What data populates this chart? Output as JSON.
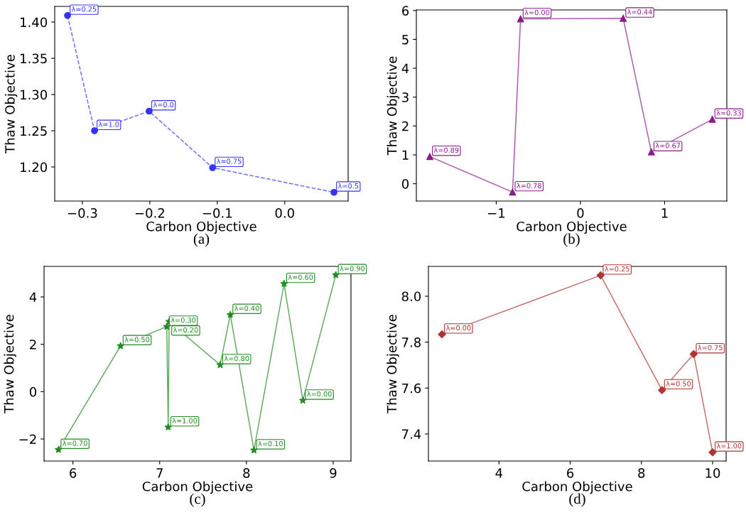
{
  "chart_data": [
    {
      "type": "line",
      "xlabel": "Carbon Objective",
      "ylabel": "Thaw Objective",
      "marker": "circle",
      "line_style": "dashed",
      "grid": false,
      "x": [
        -0.322,
        -0.282,
        -0.201,
        -0.107,
        0.073
      ],
      "series": [
        {
          "color": "#3333ff",
          "values": [
            1.409,
            1.25,
            1.277,
            1.199,
            1.165
          ]
        }
      ],
      "xlim": [
        -0.341,
        0.094
      ],
      "xticks": [
        {
          "value": -0.3,
          "label": "−0.3"
        },
        {
          "value": -0.2,
          "label": "−0.2"
        },
        {
          "value": -0.1,
          "label": "−0.1"
        },
        {
          "value": 0.0,
          "label": "0.0"
        }
      ],
      "ylim": [
        1.153,
        1.4216
      ],
      "yticks": [
        {
          "value": 1.2,
          "label": "1.20"
        },
        {
          "value": 1.25,
          "label": "1.25"
        },
        {
          "value": 1.3,
          "label": "1.30"
        },
        {
          "value": 1.35,
          "label": "1.35"
        },
        {
          "value": 1.4,
          "label": "1.40"
        }
      ],
      "annotations": [
        {
          "text": "λ=0.25",
          "x": -0.322,
          "y": 1.409
        },
        {
          "text": "λ=1.0",
          "x": -0.282,
          "y": 1.25
        },
        {
          "text": "λ=0.0",
          "x": -0.201,
          "y": 1.277
        },
        {
          "text": "λ=0.75",
          "x": -0.107,
          "y": 1.199
        },
        {
          "text": "λ=0.5",
          "x": 0.073,
          "y": 1.165
        },
        "(a)"
      ]
    },
    {
      "type": "line",
      "xlabel": "Carbon Objective",
      "ylabel": "Thaw Objective",
      "marker": "triangle",
      "line_style": "solid",
      "grid": false,
      "x": [
        -1.789,
        -0.806,
        -0.711,
        0.508,
        0.843,
        1.567
      ],
      "series": [
        {
          "color": "#8b1a8b",
          "values": [
            0.94,
            -0.29,
            5.71,
            5.73,
            1.1,
            2.23
          ]
        }
      ],
      "xlim": [
        -1.949,
        1.739
      ],
      "xticks": [
        {
          "value": -1,
          "label": "−1"
        },
        0,
        1
      ],
      "ylim": [
        -0.6,
        6.02
      ],
      "yticks": [
        0,
        1,
        2,
        3,
        4,
        5,
        6
      ],
      "annotations": [
        {
          "text": "λ=0.89",
          "x": -1.789,
          "y": 0.94
        },
        {
          "text": "λ=0.78",
          "x": -0.806,
          "y": -0.29
        },
        {
          "text": "λ=0.00",
          "x": -0.711,
          "y": 5.71
        },
        {
          "text": "λ=0.44",
          "x": 0.508,
          "y": 5.73
        },
        {
          "text": "λ=0.67",
          "x": 0.843,
          "y": 1.1
        },
        {
          "text": "λ=0.33",
          "x": 1.567,
          "y": 2.23
        },
        "(b)"
      ]
    },
    {
      "type": "line",
      "xlabel": "Carbon Objective",
      "ylabel": "Thaw Objective",
      "marker": "star",
      "line_style": "solid",
      "grid": false,
      "x": [
        5.833,
        6.549,
        7.082,
        7.098,
        7.109,
        7.697,
        7.814,
        8.087,
        8.434,
        8.65,
        9.03
      ],
      "series": [
        {
          "color": "#228b22",
          "values": [
            -2.45,
            1.93,
            2.75,
            -1.5,
            2.96,
            1.13,
            3.25,
            -2.47,
            4.56,
            -0.37,
            4.93
          ]
        }
      ],
      "xlim": [
        5.667,
        9.205
      ],
      "xticks": [
        6,
        7,
        8,
        9
      ],
      "ylim": [
        -2.93,
        5.29
      ],
      "yticks": [
        {
          "value": -2,
          "label": "−2"
        },
        0,
        2,
        4
      ],
      "annotations": [
        {
          "text": "λ=0.70",
          "x": 5.833,
          "y": -2.45
        },
        {
          "text": "λ=0.50",
          "x": 6.549,
          "y": 1.93
        },
        {
          "text": "λ=0.30",
          "x": 7.082,
          "y": 2.75
        },
        {
          "text": "λ=1.00",
          "x": 7.098,
          "y": -1.5
        },
        {
          "text": "λ=0.20",
          "x": 7.109,
          "y": 2.96
        },
        {
          "text": "λ=0.80",
          "x": 7.697,
          "y": 1.13
        },
        {
          "text": "λ=0.40",
          "x": 7.814,
          "y": 3.25
        },
        {
          "text": "λ=0.10",
          "x": 8.087,
          "y": -2.47
        },
        {
          "text": "λ=0.60",
          "x": 8.434,
          "y": 4.56
        },
        {
          "text": "λ=0.00",
          "x": 8.65,
          "y": -0.37
        },
        {
          "text": "λ=0.90",
          "x": 9.03,
          "y": 4.93
        },
        "(c)"
      ]
    },
    {
      "type": "line",
      "xlabel": "Carbon Objective",
      "ylabel": "Thaw Objective",
      "marker": "diamond",
      "line_style": "solid",
      "grid": false,
      "x": [
        2.397,
        6.854,
        8.578,
        9.469,
        10.0
      ],
      "series": [
        {
          "color": "#b03535",
          "values": [
            7.834,
            8.091,
            7.591,
            7.748,
            7.32
          ]
        }
      ],
      "xlim": [
        2.017,
        10.38
      ],
      "xticks": [
        4,
        6,
        8,
        10
      ],
      "ylim": [
        7.282,
        8.13
      ],
      "yticks": [
        {
          "value": 7.4,
          "label": "7.4"
        },
        {
          "value": 7.6,
          "label": "7.6"
        },
        {
          "value": 7.8,
          "label": "7.8"
        },
        {
          "value": 8.0,
          "label": "8.0"
        }
      ],
      "annotations": [
        {
          "text": "λ=0.00",
          "x": 2.397,
          "y": 7.834
        },
        {
          "text": "λ=0.25",
          "x": 6.854,
          "y": 8.091
        },
        {
          "text": "λ=0.50",
          "x": 8.578,
          "y": 7.591
        },
        {
          "text": "λ=0.75",
          "x": 9.469,
          "y": 7.748
        },
        {
          "text": "λ=1.00",
          "x": 10.0,
          "y": 7.32
        },
        "(d)"
      ]
    }
  ]
}
